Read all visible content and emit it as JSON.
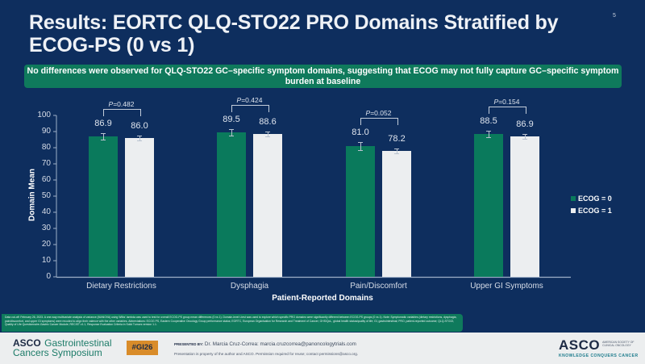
{
  "slide": {
    "title": "Results: EORTC QLQ-STO22 PRO Domains Stratified by ECOG-PS (0 vs 1)",
    "page_number": "5",
    "banner": "No differences were observed for QLQ-STO22 GC–specific symptom domains, suggesting that ECOG may not fully capture GC–specific symptom burden at baseline",
    "footnote": "Data cut-off: February 26, 2023. A one-way multivariate analysis of variance (MANOVA) using Wilks' lambda was used to test for overall ECOG-PS group mean differences (0 vs 1). Domain-level t-test was used to explore which specific PRO domains were significantly different between ECOG-PS groups (0 vs 1). Note: Symptomatic variables (dietary restrictions, dysphagia, pain/discomfort, and upper GI symptoms) were recoded to align their valence with the other variables. Abbreviations: ECOG PS, Eastern Cooperative Oncology Group performance status; EORTC, European Organisation for Research and Treatment of Cancer; GHS/QoL, global health status/quality of life; GI, gastrointestinal; PRO, patient-reported outcome; QLQ-STO22, Quality of Life Questionnaire-Gastric Cancer Module; RECIST v1.1, Response Evaluation Criteria in Solid Tumors version 1.1."
  },
  "chart_data": {
    "type": "bar",
    "title": "",
    "xlabel": "Patient-Reported Domains",
    "ylabel": "Domain Mean",
    "ylim": [
      0,
      100
    ],
    "yticks": [
      0,
      10,
      20,
      30,
      40,
      50,
      60,
      70,
      80,
      90,
      100
    ],
    "categories": [
      "Dietary Restrictions",
      "Dysphagia",
      "Pain/Discomfort",
      "Upper GI Symptoms"
    ],
    "series": [
      {
        "name": "ECOG = 0",
        "color": "#0a7a5c",
        "values": [
          86.9,
          89.5,
          81.0,
          88.5
        ],
        "labels": [
          "86.9",
          "89.5",
          "81.0",
          "88.5"
        ],
        "error": [
          2.0,
          2.0,
          2.5,
          2.0
        ]
      },
      {
        "name": "ECOG = 1",
        "color": "#eceef0",
        "values": [
          86.0,
          88.6,
          78.2,
          86.9
        ],
        "labels": [
          "86.0",
          "88.6",
          "78.2",
          "86.9"
        ],
        "error": [
          1.5,
          1.5,
          1.5,
          1.5
        ]
      }
    ],
    "p_values": [
      "0.482",
      "0.424",
      "0.052",
      "0.154"
    ],
    "p_prefix": "P",
    "legend_position": "right",
    "grid": false
  },
  "footer": {
    "logo_left_asco": "ASCO",
    "logo_left_line1": "Gastrointestinal",
    "logo_left_line2": "Cancers Symposium",
    "hashtag": "#GI26",
    "presented_by_label": "PRESENTED BY:",
    "presented_by_text": "Dr. Marcia Cruz-Correa: marcia.cruzcorrea@panoncologytrials.com",
    "property_notice": "Presentation is property of the author and ASCO. Permission required for reuse; contact permissions@asco.org.",
    "logo_right_asco": "ASCO",
    "logo_right_org": "AMERICAN SOCIETY OF CLINICAL ONCOLOGY",
    "logo_right_tagline": "KNOWLEDGE CONQUERS CANCER"
  }
}
